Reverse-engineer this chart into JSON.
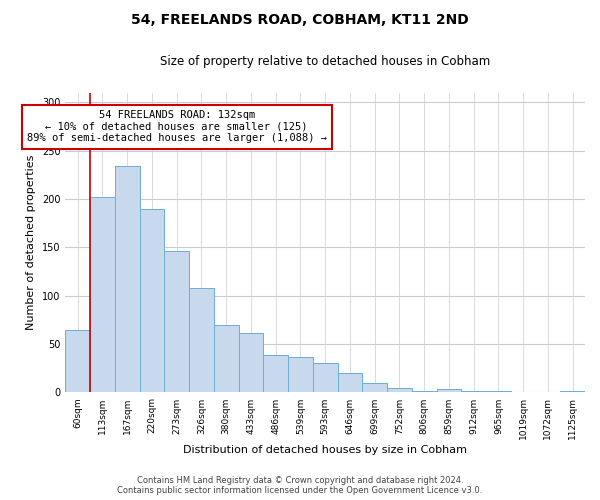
{
  "title": "54, FREELANDS ROAD, COBHAM, KT11 2ND",
  "subtitle": "Size of property relative to detached houses in Cobham",
  "xlabel": "Distribution of detached houses by size in Cobham",
  "ylabel": "Number of detached properties",
  "bar_labels": [
    "60sqm",
    "113sqm",
    "167sqm",
    "220sqm",
    "273sqm",
    "326sqm",
    "380sqm",
    "433sqm",
    "486sqm",
    "539sqm",
    "593sqm",
    "646sqm",
    "699sqm",
    "752sqm",
    "806sqm",
    "859sqm",
    "912sqm",
    "965sqm",
    "1019sqm",
    "1072sqm",
    "1125sqm"
  ],
  "bar_values": [
    65,
    202,
    234,
    190,
    146,
    108,
    70,
    61,
    39,
    37,
    30,
    20,
    10,
    5,
    2,
    4,
    1,
    1,
    0,
    0,
    1
  ],
  "bar_color": "#c8d9ed",
  "bar_edge_color": "#6aaed6",
  "annotation_text_line1": "54 FREELANDS ROAD: 132sqm",
  "annotation_text_line2": "← 10% of detached houses are smaller (125)",
  "annotation_text_line3": "89% of semi-detached houses are larger (1,088) →",
  "annotation_box_color": "#ffffff",
  "annotation_box_edge": "#cc0000",
  "vline_color": "#cc0000",
  "vline_x": 1,
  "ylim": [
    0,
    310
  ],
  "yticks": [
    0,
    50,
    100,
    150,
    200,
    250,
    300
  ],
  "footer_line1": "Contains HM Land Registry data © Crown copyright and database right 2024.",
  "footer_line2": "Contains public sector information licensed under the Open Government Licence v3.0.",
  "background_color": "#ffffff",
  "grid_color": "#cccccc"
}
